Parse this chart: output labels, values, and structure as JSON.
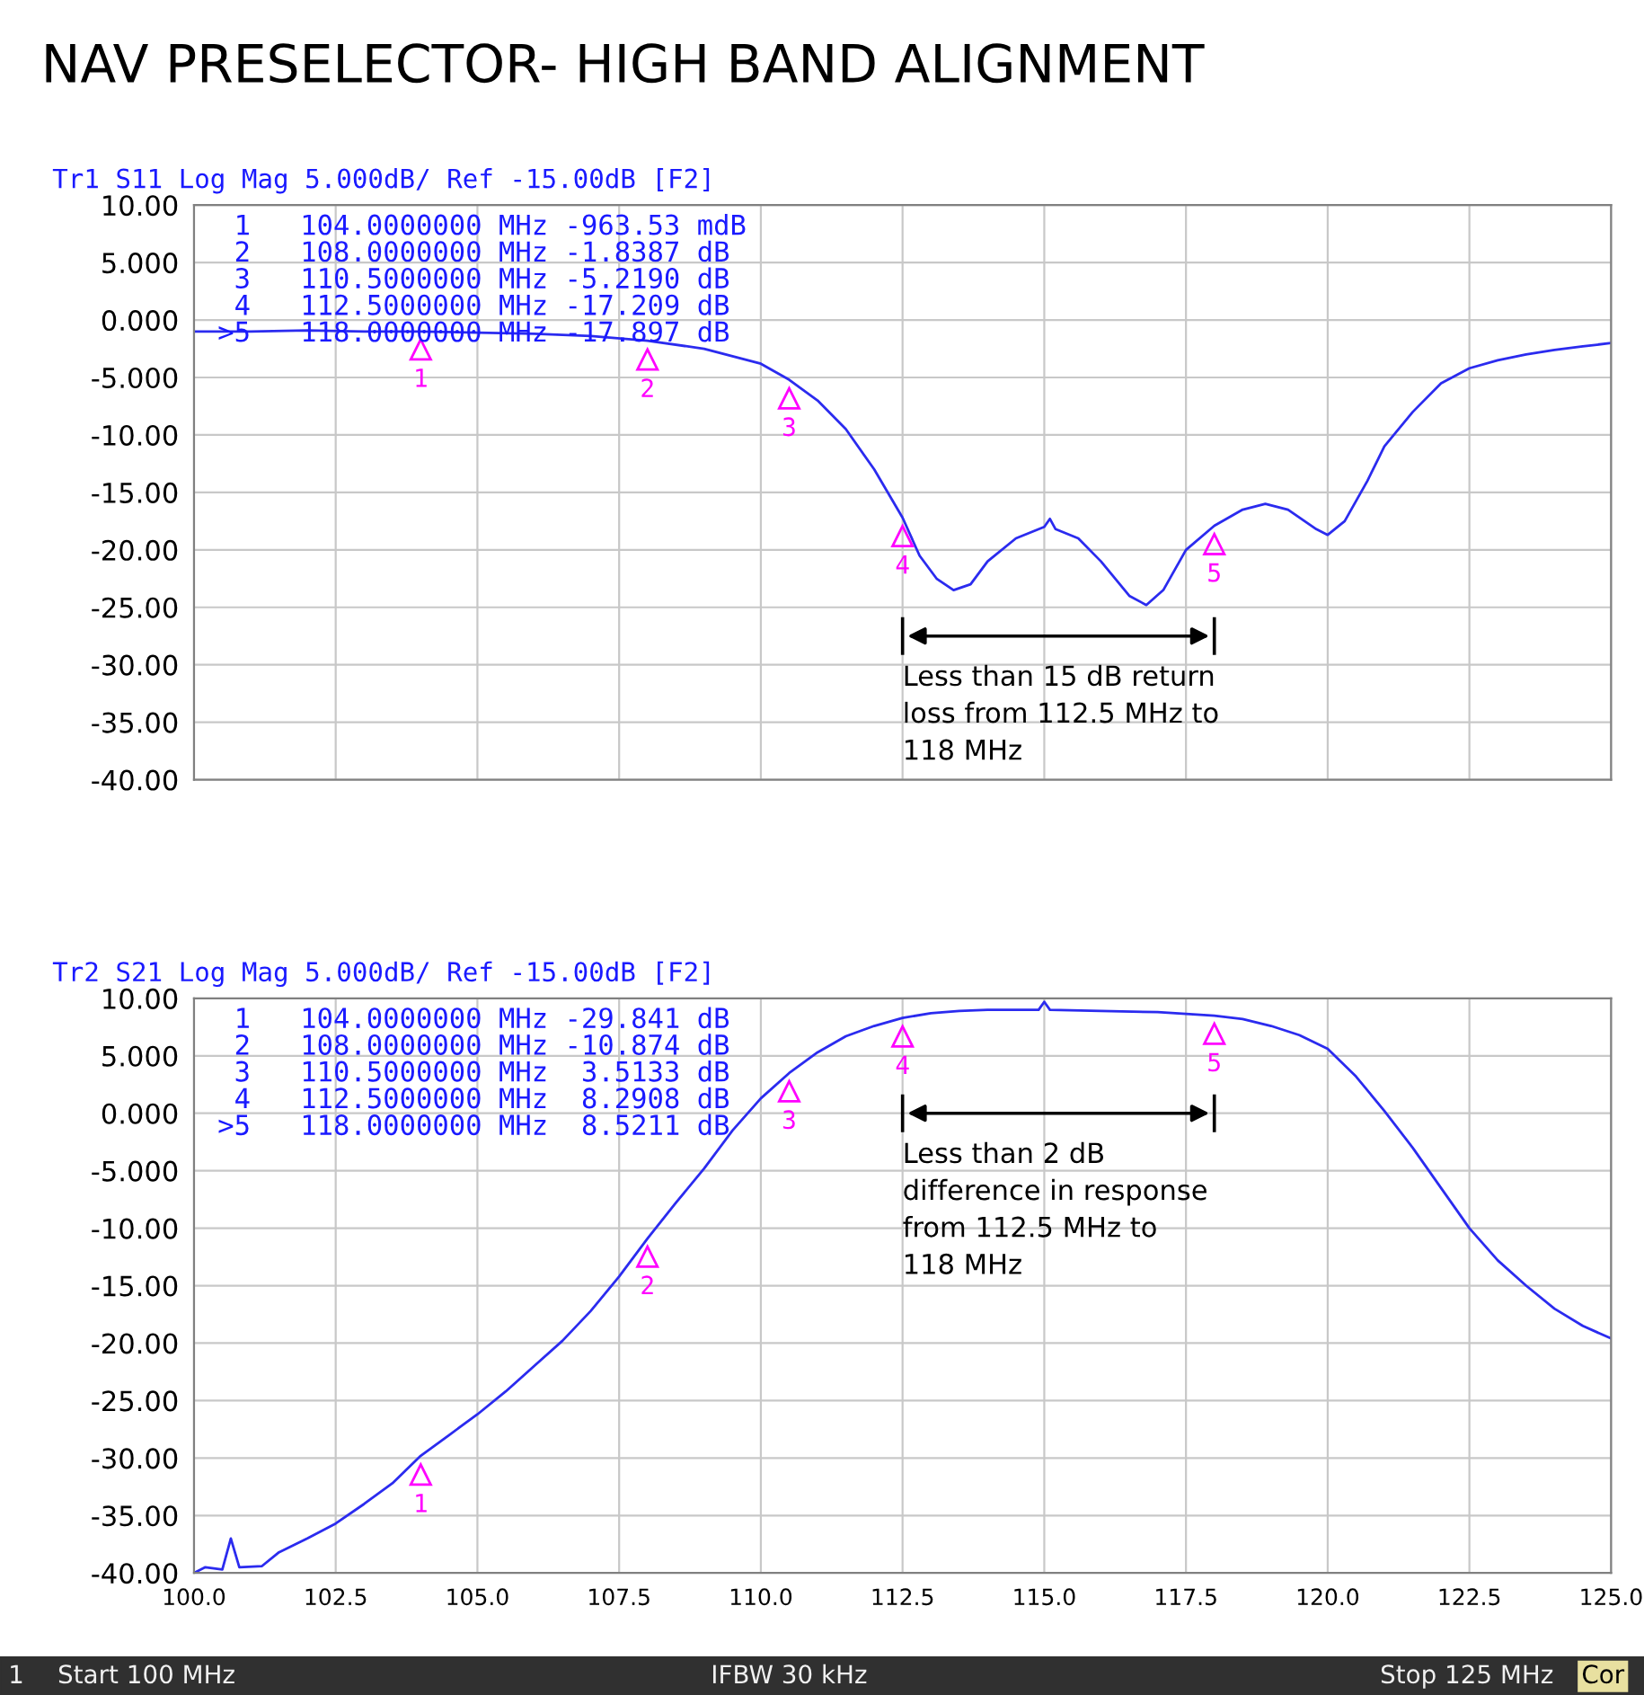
{
  "chart_data": [
    {
      "type": "line",
      "title": "NAV PRESELECTOR- HIGH BAND ALIGNMENT",
      "subtitle": "Tr1 S11 Log Mag 5.000dB/ Ref -15.00dB [F2]",
      "series": [
        {
          "color": "#2b2bef",
          "x": [
            100,
            101,
            102,
            103,
            104,
            105,
            106,
            107,
            108,
            109,
            110,
            110.5,
            111,
            111.5,
            112,
            112.5,
            112.8,
            113.1,
            113.4,
            113.7,
            114,
            114.5,
            115,
            115.1,
            115.2,
            115.6,
            116,
            116.5,
            116.8,
            117.1,
            117.5,
            118,
            118.5,
            118.9,
            119.3,
            119.8,
            120,
            120.3,
            120.7,
            121,
            121.5,
            122,
            122.5,
            123,
            123.5,
            124,
            124.5,
            125
          ],
          "values": [
            -1.0,
            -1.0,
            -0.9,
            -1.0,
            -1.0,
            -1.1,
            -1.2,
            -1.4,
            -1.8,
            -2.5,
            -3.8,
            -5.2,
            -7,
            -9.5,
            -13,
            -17.2,
            -20.5,
            -22.5,
            -23.5,
            -23,
            -21,
            -19,
            -18,
            -17.3,
            -18.2,
            -19,
            -21,
            -24,
            -24.8,
            -23.5,
            -20,
            -17.9,
            -16.5,
            -16,
            -16.5,
            -18.2,
            -18.7,
            -17.5,
            -14,
            -11,
            -8,
            -5.5,
            -4.2,
            -3.5,
            -3,
            -2.6,
            -2.3,
            -2.0
          ]
        }
      ],
      "xlim": [
        100,
        125
      ],
      "xticks": [
        100,
        102.5,
        105,
        107.5,
        110,
        112.5,
        115,
        117.5,
        120,
        122.5,
        125
      ],
      "ylim": [
        -40,
        10
      ],
      "yticks": [
        {
          "value": 10,
          "label": "10.00"
        },
        {
          "value": 5,
          "label": "5.000"
        },
        {
          "value": 0,
          "label": "0.000"
        },
        {
          "value": -5,
          "label": "-5.000"
        },
        {
          "value": -10,
          "label": "-10.00"
        },
        {
          "value": -15,
          "label": "-15.00"
        },
        {
          "value": -20,
          "label": "-20.00"
        },
        {
          "value": -25,
          "label": "-25.00"
        },
        {
          "value": -30,
          "label": "-30.00"
        },
        {
          "value": -35,
          "label": "-35.00"
        },
        {
          "value": -40,
          "label": "-40.00"
        }
      ],
      "tick_labels": "y",
      "grid": true,
      "annotations": [
        "Less than 15 dB return\nloss from 112.5 MHz to\n118 MHz",
        "  1   104.0000000 MHz -963.53 mdB\n  2   108.0000000 MHz -1.8387 dB\n  3   110.5000000 MHz -5.2190 dB\n  4   112.5000000 MHz -17.209 dB\n >5   118.0000000 MHz -17.897 dB",
        {
          "text": "1",
          "x": 104,
          "y": -0.96353
        },
        {
          "text": "2",
          "x": 108,
          "y": -1.8387
        },
        {
          "text": "3",
          "x": 110.5,
          "y": -5.219
        },
        {
          "text": "4",
          "x": 112.5,
          "y": -17.209
        },
        {
          "text": "5",
          "x": 118,
          "y": -17.897
        }
      ]
    },
    {
      "type": "line",
      "subtitle": "Tr2 S21 Log Mag 5.000dB/ Ref -15.00dB [F2]",
      "series": [
        {
          "color": "#2b2bef",
          "x": [
            100,
            100.2,
            100.5,
            100.65,
            100.8,
            101.2,
            101.5,
            102,
            102.5,
            103,
            103.5,
            104,
            104.5,
            105,
            105.5,
            106,
            106.5,
            107,
            107.5,
            108,
            108.5,
            109,
            109.5,
            110,
            110.5,
            111,
            111.5,
            112,
            112.5,
            113,
            113.5,
            114,
            114.9,
            115,
            115.1,
            116,
            117,
            118,
            118.5,
            119,
            119.5,
            120,
            120.5,
            121,
            121.5,
            122,
            122.5,
            123,
            123.5,
            124,
            124.5,
            125
          ],
          "values": [
            -40,
            -39.5,
            -39.7,
            -37.0,
            -39.5,
            -39.4,
            -38.2,
            -37,
            -35.7,
            -34,
            -32.2,
            -29.8,
            -28,
            -26.2,
            -24.2,
            -22,
            -19.8,
            -17.2,
            -14.2,
            -10.9,
            -7.8,
            -4.8,
            -1.5,
            1.3,
            3.5,
            5.3,
            6.7,
            7.6,
            8.3,
            8.7,
            8.9,
            9.0,
            9.0,
            9.7,
            9.0,
            8.9,
            8.8,
            8.5,
            8.2,
            7.6,
            6.8,
            5.6,
            3.2,
            0.2,
            -3,
            -6.5,
            -10,
            -12.8,
            -15,
            -17,
            -18.5,
            -19.6
          ]
        }
      ],
      "xlim": [
        100,
        125
      ],
      "xticks": [
        {
          "value": 100,
          "label": "100.0"
        },
        {
          "value": 102.5,
          "label": "102.5"
        },
        {
          "value": 105,
          "label": "105.0"
        },
        {
          "value": 107.5,
          "label": "107.5"
        },
        {
          "value": 110,
          "label": "110.0"
        },
        {
          "value": 112.5,
          "label": "112.5"
        },
        {
          "value": 115,
          "label": "115.0"
        },
        {
          "value": 117.5,
          "label": "117.5"
        },
        {
          "value": 120,
          "label": "120.0"
        },
        {
          "value": 122.5,
          "label": "122.5"
        },
        {
          "value": 125,
          "label": "125.0"
        }
      ],
      "ylim": [
        -40,
        10
      ],
      "yticks": [
        {
          "value": 10,
          "label": "10.00"
        },
        {
          "value": 5,
          "label": "5.000"
        },
        {
          "value": 0,
          "label": "0.000"
        },
        {
          "value": -5,
          "label": "-5.000"
        },
        {
          "value": -10,
          "label": "-10.00"
        },
        {
          "value": -15,
          "label": "-15.00"
        },
        {
          "value": -20,
          "label": "-20.00"
        },
        {
          "value": -25,
          "label": "-25.00"
        },
        {
          "value": -30,
          "label": "-30.00"
        },
        {
          "value": -35,
          "label": "-35.00"
        },
        {
          "value": -40,
          "label": "-40.00"
        }
      ],
      "grid": true,
      "annotations": [
        "Less than 2 dB\ndifference in response\nfrom 112.5 MHz to\n118 MHz",
        "  1   104.0000000 MHz -29.841 dB\n  2   108.0000000 MHz -10.874 dB\n  3   110.5000000 MHz  3.5133 dB\n  4   112.5000000 MHz  8.2908 dB\n >5   118.0000000 MHz  8.5211 dB",
        {
          "text": "1",
          "x": 104,
          "y": -29.841
        },
        {
          "text": "2",
          "x": 108,
          "y": -10.874
        },
        {
          "text": "3",
          "x": 110.5,
          "y": 3.5133
        },
        {
          "text": "4",
          "x": 112.5,
          "y": 8.2908
        },
        {
          "text": "5",
          "x": 118,
          "y": 8.5211
        },
        "1",
        "Start 100 MHz",
        "IFBW 30 kHz",
        "Stop 125 MHz",
        "Cor"
      ]
    }
  ]
}
